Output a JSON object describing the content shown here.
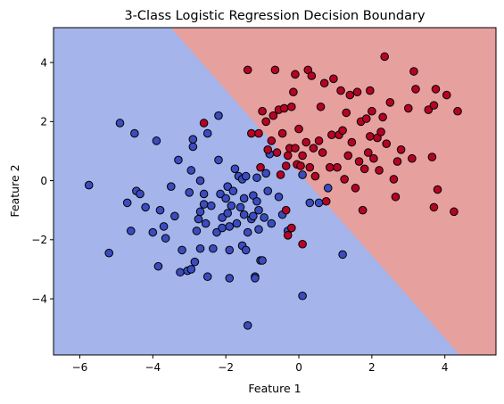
{
  "chart_data": {
    "type": "scatter",
    "title": "3-Class Logistic Regression Decision Boundary",
    "xlabel": "Feature 1",
    "ylabel": "Feature 2",
    "xlim": [
      -6.72,
      5.4
    ],
    "ylim": [
      -5.9,
      5.18
    ],
    "xticks": [
      -6,
      -4,
      -2,
      0,
      2,
      4
    ],
    "yticks": [
      -4,
      -2,
      0,
      2,
      4
    ],
    "grid": false,
    "legend": "none",
    "regions": {
      "boundary_line": {
        "slope": -1.4,
        "intercept": 0.27
      },
      "below_color": "#a5b4ea",
      "above_color": "#e6a09e"
    },
    "series": [
      {
        "color": "#3a4cc0",
        "points": [
          [
            -5.75,
            -0.15
          ],
          [
            -4.9,
            1.95
          ],
          [
            -5.2,
            -2.45
          ],
          [
            -4.7,
            -0.75
          ],
          [
            -4.6,
            -1.7
          ],
          [
            -4.45,
            -0.35
          ],
          [
            -4.35,
            -0.45
          ],
          [
            -4.2,
            -0.9
          ],
          [
            -3.9,
            1.35
          ],
          [
            -3.85,
            -2.9
          ],
          [
            -4.0,
            -1.75
          ],
          [
            -3.7,
            -1.55
          ],
          [
            -3.65,
            -1.95
          ],
          [
            -3.5,
            -0.2
          ],
          [
            -3.3,
            0.7
          ],
          [
            -3.25,
            -3.1
          ],
          [
            -3.2,
            -2.35
          ],
          [
            -3.05,
            -3.05
          ],
          [
            -2.95,
            -3.0
          ],
          [
            -3.0,
            -0.4
          ],
          [
            -2.9,
            1.15
          ],
          [
            -2.95,
            0.35
          ],
          [
            -2.9,
            1.4
          ],
          [
            -2.85,
            -2.75
          ],
          [
            -2.8,
            -1.7
          ],
          [
            -2.75,
            -1.3
          ],
          [
            -2.7,
            -1.05
          ],
          [
            -2.7,
            0.0
          ],
          [
            -2.6,
            -0.45
          ],
          [
            -2.6,
            -0.8
          ],
          [
            -2.55,
            -1.45
          ],
          [
            -2.5,
            -3.25
          ],
          [
            -2.5,
            1.6
          ],
          [
            -2.4,
            -0.85
          ],
          [
            -2.35,
            -2.3
          ],
          [
            -2.25,
            -1.75
          ],
          [
            -2.2,
            0.7
          ],
          [
            -2.2,
            2.2
          ],
          [
            -2.15,
            -0.45
          ],
          [
            -2.1,
            -1.25
          ],
          [
            -2.1,
            -1.6
          ],
          [
            -2.0,
            -0.6
          ],
          [
            -1.95,
            -0.2
          ],
          [
            -1.95,
            -1.1
          ],
          [
            -1.9,
            -1.55
          ],
          [
            -1.9,
            -2.35
          ],
          [
            -1.9,
            -3.3
          ],
          [
            -1.85,
            -0.85
          ],
          [
            -1.8,
            -0.35
          ],
          [
            -1.75,
            0.4
          ],
          [
            -1.7,
            -1.45
          ],
          [
            -1.65,
            0.15
          ],
          [
            -1.6,
            -0.9
          ],
          [
            -1.55,
            -2.2
          ],
          [
            -1.55,
            0.05
          ],
          [
            -1.5,
            -0.6
          ],
          [
            -1.5,
            -1.15
          ],
          [
            -1.45,
            -2.35
          ],
          [
            -1.45,
            0.15
          ],
          [
            -1.4,
            -4.9
          ],
          [
            -1.4,
            -1.75
          ],
          [
            -1.3,
            -1.3
          ],
          [
            -1.25,
            -0.5
          ],
          [
            -1.25,
            -1.2
          ],
          [
            -1.2,
            -3.25
          ],
          [
            -1.2,
            -3.3
          ],
          [
            -1.15,
            0.1
          ],
          [
            -1.15,
            -0.7
          ],
          [
            -1.1,
            -1.0
          ],
          [
            -1.1,
            -1.65
          ],
          [
            -1.05,
            -2.7
          ],
          [
            -1.0,
            -2.7
          ],
          [
            -0.95,
            -1.25
          ],
          [
            -0.9,
            0.25
          ],
          [
            -0.85,
            -0.35
          ],
          [
            -0.8,
            0.9
          ],
          [
            -0.75,
            -1.45
          ],
          [
            -0.55,
            -0.55
          ],
          [
            -0.45,
            -1.15
          ],
          [
            -0.3,
            -1.7
          ],
          [
            0.1,
            -3.9
          ],
          [
            0.1,
            0.2
          ],
          [
            0.3,
            -0.75
          ],
          [
            0.55,
            -0.75
          ],
          [
            1.2,
            -2.5
          ],
          [
            0.8,
            -0.25
          ],
          [
            -3.8,
            -1.0
          ],
          [
            -4.5,
            1.6
          ],
          [
            -3.4,
            -1.2
          ],
          [
            -2.7,
            -2.3
          ]
        ]
      },
      {
        "color": "#b40426",
        "points": [
          [
            -2.6,
            1.95
          ],
          [
            -1.4,
            3.75
          ],
          [
            -1.3,
            1.6
          ],
          [
            -1.1,
            1.6
          ],
          [
            -1.05,
            0.45
          ],
          [
            -0.9,
            2.0
          ],
          [
            -0.85,
            1.05
          ],
          [
            -0.75,
            1.35
          ],
          [
            -0.7,
            2.2
          ],
          [
            -0.65,
            3.75
          ],
          [
            -0.6,
            0.95
          ],
          [
            -0.55,
            2.4
          ],
          [
            -0.45,
            1.6
          ],
          [
            -0.4,
            2.45
          ],
          [
            -0.35,
            0.5
          ],
          [
            -0.3,
            0.85
          ],
          [
            -0.25,
            1.1
          ],
          [
            -0.2,
            2.5
          ],
          [
            -0.15,
            3.0
          ],
          [
            -0.1,
            3.6
          ],
          [
            -0.1,
            1.1
          ],
          [
            -0.05,
            0.55
          ],
          [
            0.0,
            1.75
          ],
          [
            0.05,
            0.5
          ],
          [
            0.1,
            0.85
          ],
          [
            0.2,
            1.3
          ],
          [
            0.25,
            3.75
          ],
          [
            0.3,
            0.45
          ],
          [
            0.35,
            3.55
          ],
          [
            0.4,
            1.1
          ],
          [
            0.45,
            0.15
          ],
          [
            0.55,
            1.35
          ],
          [
            0.6,
            2.5
          ],
          [
            0.65,
            0.95
          ],
          [
            0.75,
            -0.7
          ],
          [
            0.85,
            0.45
          ],
          [
            0.9,
            1.55
          ],
          [
            0.95,
            3.45
          ],
          [
            1.05,
            0.45
          ],
          [
            1.1,
            1.55
          ],
          [
            1.15,
            3.05
          ],
          [
            1.2,
            1.7
          ],
          [
            1.25,
            0.05
          ],
          [
            1.3,
            2.3
          ],
          [
            1.35,
            0.85
          ],
          [
            1.45,
            1.3
          ],
          [
            1.55,
            -0.25
          ],
          [
            1.6,
            3.0
          ],
          [
            1.65,
            0.65
          ],
          [
            1.7,
            2.0
          ],
          [
            1.8,
            0.4
          ],
          [
            1.85,
            2.1
          ],
          [
            1.9,
            0.95
          ],
          [
            1.95,
            1.5
          ],
          [
            2.0,
            2.35
          ],
          [
            2.05,
            0.75
          ],
          [
            2.15,
            1.45
          ],
          [
            2.2,
            0.35
          ],
          [
            2.25,
            1.65
          ],
          [
            2.35,
            4.2
          ],
          [
            2.4,
            1.25
          ],
          [
            2.5,
            2.65
          ],
          [
            2.6,
            0.05
          ],
          [
            2.7,
            0.65
          ],
          [
            2.8,
            1.05
          ],
          [
            3.0,
            2.45
          ],
          [
            3.1,
            0.75
          ],
          [
            3.15,
            3.7
          ],
          [
            3.2,
            3.1
          ],
          [
            3.55,
            2.4
          ],
          [
            3.65,
            0.8
          ],
          [
            3.7,
            2.55
          ],
          [
            3.75,
            3.1
          ],
          [
            3.8,
            -0.3
          ],
          [
            4.05,
            2.9
          ],
          [
            4.25,
            -1.05
          ],
          [
            4.35,
            2.35
          ],
          [
            3.7,
            -0.9
          ],
          [
            2.65,
            -0.55
          ],
          [
            1.95,
            3.05
          ],
          [
            -0.5,
            0.2
          ],
          [
            -0.35,
            -1.0
          ],
          [
            -0.2,
            -1.6
          ],
          [
            0.1,
            -2.15
          ],
          [
            -0.3,
            -1.85
          ],
          [
            1.4,
            2.9
          ],
          [
            0.7,
            3.3
          ],
          [
            2.3,
            2.15
          ],
          [
            -1.0,
            2.35
          ],
          [
            1.75,
            -1.0
          ]
        ]
      }
    ]
  }
}
